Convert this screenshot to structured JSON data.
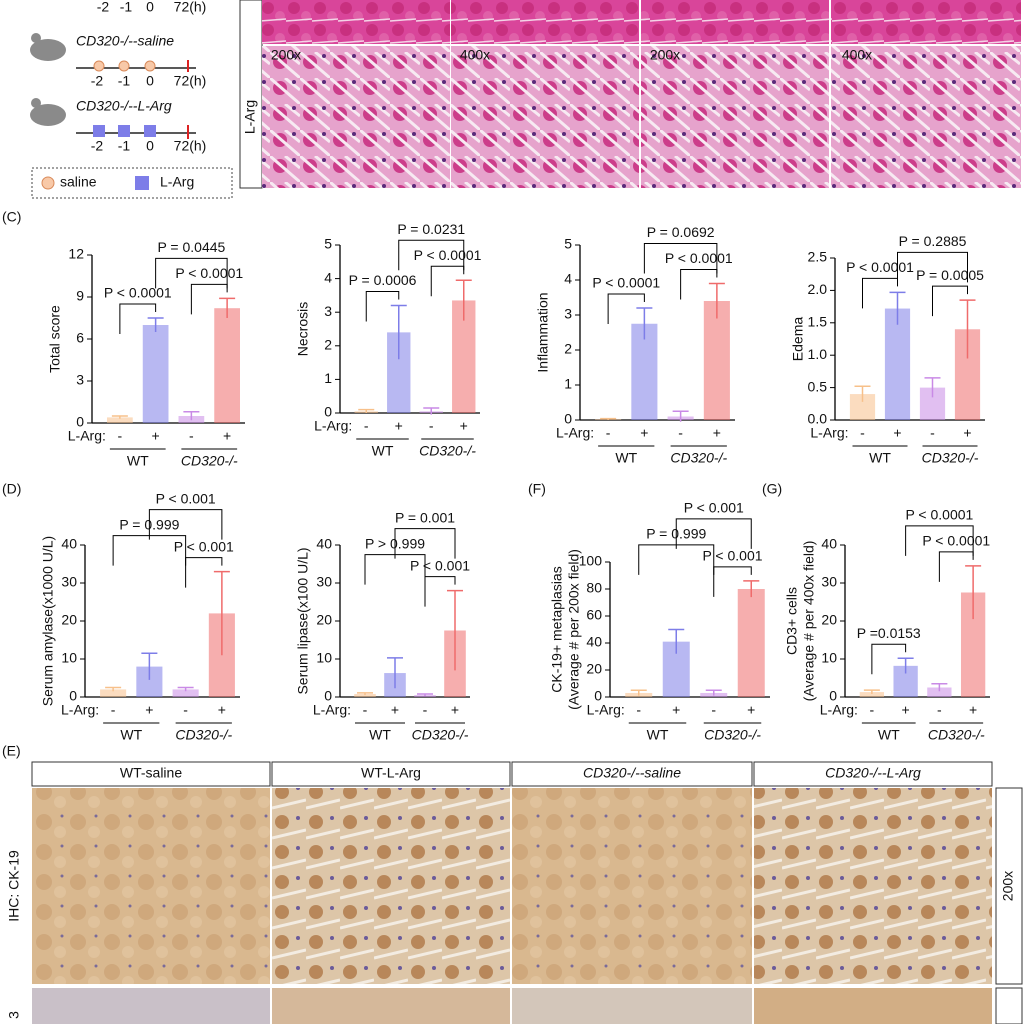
{
  "panel_labels": {
    "C": "(C)",
    "D": "(D)",
    "F": "(F)",
    "G": "(G)",
    "E": "(E)"
  },
  "schema": {
    "top_ticks": [
      "-2",
      "-1",
      "0",
      "72(h)"
    ],
    "groups": [
      {
        "label": "CD320-/--saline",
        "ticks": [
          "-2",
          "-1",
          "0",
          "72(h)"
        ]
      },
      {
        "label": "CD320-/--L-Arg",
        "ticks": [
          "-2",
          "-1",
          "0",
          "72(h)"
        ]
      }
    ],
    "legend": [
      "saline",
      "L-Arg"
    ]
  },
  "histology": {
    "row_label": "L-Arg",
    "magnifications": [
      "200x",
      "400x",
      "200x",
      "400x"
    ]
  },
  "ihc": {
    "columns": [
      "WT-saline",
      "WT-L-Arg",
      "CD320-/--saline",
      "CD320-/--L-Arg"
    ],
    "row_label": "IHC: CK-19",
    "magnification": "200x",
    "next_row_label": "3"
  },
  "chart_data": [
    {
      "type": "bar",
      "ylabel": [
        "Total score"
      ],
      "x_label": "L-Arg:",
      "categories": [
        "-",
        "+",
        "-",
        "+"
      ],
      "groups": [
        "WT",
        "CD320-/-"
      ],
      "values": [
        0.4,
        7.0,
        0.5,
        8.2
      ],
      "errors": [
        0.1,
        0.5,
        0.3,
        0.7
      ],
      "colors": [
        "#f7c08a",
        "#7d7de8",
        "#c98ae6",
        "#ef6b6b"
      ],
      "ylim": [
        0,
        12
      ],
      "yticks": [
        0,
        3,
        6,
        9,
        12
      ],
      "annotations": {
        "p_wt": "P < 0.0001",
        "p_ko": "P < 0.0001",
        "p_lar": "P = 0.0445"
      }
    },
    {
      "type": "bar",
      "ylabel": [
        "Necrosis"
      ],
      "x_label": "L-Arg:",
      "categories": [
        "-",
        "+",
        "-",
        "+"
      ],
      "groups": [
        "WT",
        "CD320-/-"
      ],
      "values": [
        0.05,
        2.4,
        0.05,
        3.35
      ],
      "errors": [
        0.05,
        0.8,
        0.1,
        0.6
      ],
      "colors": [
        "#f7c08a",
        "#7d7de8",
        "#c98ae6",
        "#ef6b6b"
      ],
      "ylim": [
        0,
        5
      ],
      "yticks": [
        0,
        1,
        2,
        3,
        4,
        5
      ],
      "annotations": {
        "p_wt": "P = 0.0006",
        "p_ko": "P < 0.0001",
        "p_lar": "P = 0.0231"
      }
    },
    {
      "type": "bar",
      "ylabel": [
        "Inflammation"
      ],
      "x_label": "L-Arg:",
      "categories": [
        "-",
        "+",
        "-",
        "+"
      ],
      "groups": [
        "WT",
        "CD320-/-"
      ],
      "values": [
        0.02,
        2.75,
        0.1,
        3.4
      ],
      "errors": [
        0.02,
        0.45,
        0.15,
        0.5
      ],
      "colors": [
        "#f7c08a",
        "#7d7de8",
        "#c98ae6",
        "#ef6b6b"
      ],
      "ylim": [
        0,
        5
      ],
      "yticks": [
        0,
        1,
        2,
        3,
        4,
        5
      ],
      "annotations": {
        "p_wt": "P < 0.0001",
        "p_ko": "P < 0.0001",
        "p_lar": "P = 0.0692"
      }
    },
    {
      "type": "bar",
      "ylabel": [
        "Edema"
      ],
      "x_label": "L-Arg:",
      "categories": [
        "-",
        "+",
        "-",
        "+"
      ],
      "groups": [
        "WT",
        "CD320-/-"
      ],
      "values": [
        0.4,
        1.72,
        0.5,
        1.4
      ],
      "errors": [
        0.12,
        0.25,
        0.15,
        0.45
      ],
      "colors": [
        "#f7c08a",
        "#7d7de8",
        "#c98ae6",
        "#ef6b6b"
      ],
      "ylim": [
        0,
        2.5
      ],
      "yticks": [
        {
          "value": 0,
          "label": "0.0"
        },
        0.5,
        {
          "value": 1,
          "label": "1.0"
        },
        1.5,
        {
          "value": 2,
          "label": "2.0"
        },
        2.5
      ],
      "annotations": {
        "p_wt": "P < 0.0001",
        "p_ko": "P = 0.0005",
        "p_lar": "P = 0.2885"
      }
    },
    {
      "type": "bar",
      "ylabel": [
        "Serum amylase(x1000 U/L)"
      ],
      "x_label": "L-Arg:",
      "categories": [
        "-",
        "+",
        "-",
        "+"
      ],
      "groups": [
        "WT",
        "CD320-/-"
      ],
      "values": [
        2,
        8,
        2,
        22
      ],
      "errors": [
        0.5,
        3.5,
        0.5,
        11
      ],
      "colors": [
        "#f7c08a",
        "#7d7de8",
        "#c98ae6",
        "#ef6b6b"
      ],
      "ylim": [
        0,
        40
      ],
      "yticks": [
        0,
        10,
        20,
        30,
        40
      ],
      "annotations": {
        "p_saline": "P = 0.999",
        "p_ko": "P < 0.001",
        "p_lar": "P < 0.001"
      }
    },
    {
      "type": "bar",
      "ylabel": [
        "Serum lipase(x100 U/L)"
      ],
      "x_label": "L-Arg:",
      "categories": [
        "-",
        "+",
        "-",
        "+"
      ],
      "groups": [
        "WT",
        "CD320-/-"
      ],
      "values": [
        0.8,
        6.3,
        0.5,
        17.5
      ],
      "errors": [
        0.3,
        4,
        0.3,
        10.5
      ],
      "colors": [
        "#f7c08a",
        "#7d7de8",
        "#c98ae6",
        "#ef6b6b"
      ],
      "ylim": [
        0,
        40
      ],
      "yticks": [
        0,
        10,
        20,
        30,
        40
      ],
      "annotations": {
        "p_saline": "P > 0.999",
        "p_ko": "P < 0.001",
        "p_lar": "P = 0.001"
      }
    },
    {
      "type": "bar",
      "ylabel": [
        "CK-19+ metaplasias",
        "(Average # per 200x field)"
      ],
      "x_label": "L-Arg:",
      "categories": [
        "-",
        "+",
        "-",
        "+"
      ],
      "groups": [
        "WT",
        "CD320-/-"
      ],
      "values": [
        3,
        41,
        3,
        80
      ],
      "errors": [
        2,
        9,
        2,
        6
      ],
      "colors": [
        "#f7c08a",
        "#7d7de8",
        "#c98ae6",
        "#ef6b6b"
      ],
      "ylim": [
        0,
        100
      ],
      "yticks": [
        0,
        20,
        40,
        60,
        80,
        100
      ],
      "annotations": {
        "p_saline": "P = 0.999",
        "p_ko": "P < 0.001",
        "p_lar": "P < 0.001"
      }
    },
    {
      "type": "bar",
      "ylabel": [
        "CD3+ cells",
        "(Average # per 400x field)"
      ],
      "x_label": "L-Arg:",
      "categories": [
        "-",
        "+",
        "-",
        "+"
      ],
      "groups": [
        "WT",
        "CD320-/-"
      ],
      "values": [
        1.3,
        8.2,
        2.5,
        27.5
      ],
      "errors": [
        0.5,
        2,
        1,
        7
      ],
      "colors": [
        "#f7c08a",
        "#7d7de8",
        "#c98ae6",
        "#ef6b6b"
      ],
      "ylim": [
        0,
        40
      ],
      "yticks": [
        0,
        10,
        20,
        30,
        40
      ],
      "annotations": {
        "p_wt": "P =0.0153",
        "p_ko": "P < 0.0001",
        "p_lar": "P < 0.0001"
      }
    }
  ]
}
